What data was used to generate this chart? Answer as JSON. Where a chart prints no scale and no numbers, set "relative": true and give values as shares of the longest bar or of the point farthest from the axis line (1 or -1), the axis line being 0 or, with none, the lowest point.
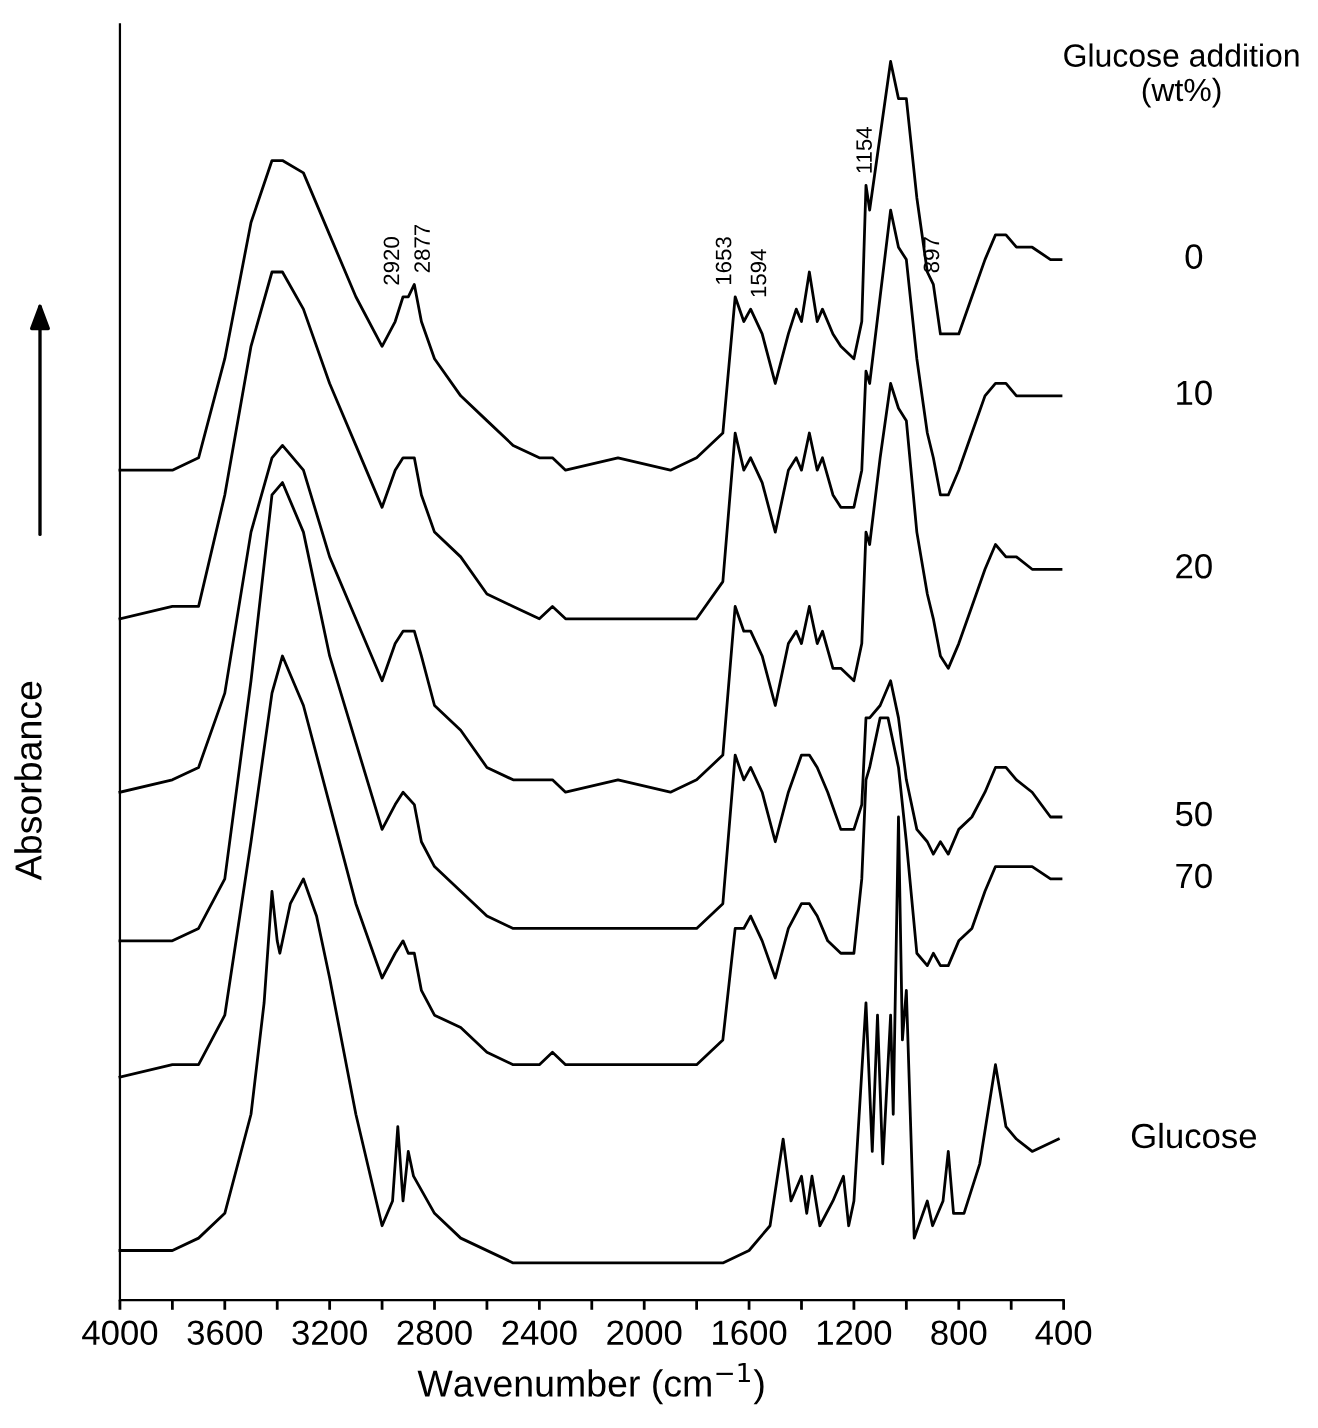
{
  "chart_data": {
    "type": "line",
    "relative": true,
    "xlabel": "Wavenumber (cm$^{−1}$)",
    "ylabel": "Absorbance",
    "legend_title": "Glucose addition\n(wt%)",
    "xlim": [
      4000,
      400
    ],
    "xticks": [
      4000,
      {
        "value": 3800,
        "label": null
      },
      3600,
      {
        "value": 3400,
        "label": null
      },
      3200,
      {
        "value": 3000,
        "label": null
      },
      2800,
      {
        "value": 2600,
        "label": null
      },
      2400,
      {
        "value": 2200,
        "label": null
      },
      2000,
      {
        "value": 1800,
        "label": null
      },
      1600,
      {
        "value": 1400,
        "label": null
      },
      1200,
      {
        "value": 1000,
        "label": null
      },
      800,
      {
        "value": 600,
        "label": null
      },
      400
    ],
    "grid": false,
    "marker": "none",
    "line_style": "solid",
    "annotations": [
      {
        "text": "2920",
        "x": 2920,
        "y": 0.81
      },
      {
        "text": "2877",
        "x": 2877,
        "y": 0.82
      },
      {
        "text": "1653",
        "x": 1653,
        "y": 0.81
      },
      {
        "text": "1594",
        "x": 1594,
        "y": 0.8
      },
      {
        "text": "1154",
        "x": 1154,
        "y": 0.9
      },
      {
        "text": "897",
        "x": 897,
        "y": 0.82
      }
    ],
    "series": [
      {
        "name": "0",
        "color": "#000000",
        "x": [
          4000,
          3800,
          3700,
          3600,
          3500,
          3420,
          3380,
          3300,
          3200,
          3100,
          3000,
          2950,
          2920,
          2900,
          2877,
          2850,
          2800,
          2700,
          2600,
          2500,
          2400,
          2350,
          2300,
          2100,
          1900,
          1800,
          1700,
          1653,
          1620,
          1594,
          1550,
          1500,
          1450,
          1420,
          1400,
          1370,
          1340,
          1320,
          1280,
          1250,
          1200,
          1170,
          1154,
          1140,
          1100,
          1060,
          1030,
          1000,
          960,
          920,
          897,
          870,
          840,
          800,
          750,
          700,
          660,
          620,
          580,
          520,
          450,
          410
        ],
        "values": [
          0.67,
          0.67,
          0.68,
          0.76,
          0.87,
          0.92,
          0.92,
          0.91,
          0.86,
          0.81,
          0.77,
          0.79,
          0.81,
          0.81,
          0.82,
          0.79,
          0.76,
          0.73,
          0.71,
          0.69,
          0.68,
          0.68,
          0.67,
          0.68,
          0.67,
          0.68,
          0.7,
          0.81,
          0.79,
          0.8,
          0.78,
          0.74,
          0.78,
          0.8,
          0.79,
          0.83,
          0.79,
          0.8,
          0.78,
          0.77,
          0.76,
          0.79,
          0.9,
          0.88,
          0.94,
          1.0,
          0.97,
          0.97,
          0.89,
          0.83,
          0.82,
          0.78,
          0.78,
          0.78,
          0.81,
          0.84,
          0.86,
          0.86,
          0.85,
          0.85,
          0.84,
          0.84
        ]
      },
      {
        "name": "10",
        "color": "#000000",
        "x": [
          4000,
          3800,
          3700,
          3600,
          3500,
          3420,
          3380,
          3300,
          3200,
          3100,
          3000,
          2950,
          2920,
          2877,
          2850,
          2800,
          2700,
          2600,
          2500,
          2400,
          2350,
          2300,
          2100,
          1900,
          1800,
          1700,
          1653,
          1620,
          1594,
          1550,
          1500,
          1450,
          1420,
          1400,
          1370,
          1340,
          1320,
          1280,
          1250,
          1200,
          1170,
          1154,
          1140,
          1100,
          1060,
          1030,
          1000,
          960,
          920,
          897,
          870,
          840,
          800,
          750,
          700,
          660,
          620,
          580,
          520,
          450,
          410
        ],
        "values": [
          0.55,
          0.56,
          0.56,
          0.65,
          0.77,
          0.83,
          0.83,
          0.8,
          0.74,
          0.69,
          0.64,
          0.67,
          0.68,
          0.68,
          0.65,
          0.62,
          0.6,
          0.57,
          0.56,
          0.55,
          0.56,
          0.55,
          0.55,
          0.55,
          0.55,
          0.58,
          0.7,
          0.67,
          0.68,
          0.66,
          0.62,
          0.67,
          0.68,
          0.67,
          0.7,
          0.67,
          0.68,
          0.65,
          0.64,
          0.64,
          0.67,
          0.75,
          0.74,
          0.81,
          0.88,
          0.85,
          0.84,
          0.76,
          0.7,
          0.68,
          0.65,
          0.65,
          0.67,
          0.7,
          0.73,
          0.74,
          0.74,
          0.73,
          0.73,
          0.73,
          0.73
        ]
      },
      {
        "name": "20",
        "color": "#000000",
        "x": [
          4000,
          3800,
          3700,
          3600,
          3500,
          3420,
          3380,
          3300,
          3200,
          3100,
          3000,
          2950,
          2920,
          2877,
          2850,
          2800,
          2700,
          2600,
          2500,
          2400,
          2350,
          2300,
          2100,
          1900,
          1800,
          1700,
          1653,
          1620,
          1594,
          1550,
          1500,
          1450,
          1420,
          1400,
          1370,
          1340,
          1320,
          1280,
          1250,
          1200,
          1170,
          1154,
          1140,
          1100,
          1060,
          1030,
          1000,
          960,
          920,
          897,
          870,
          840,
          800,
          750,
          700,
          660,
          620,
          580,
          520,
          450,
          410
        ],
        "values": [
          0.41,
          0.42,
          0.43,
          0.49,
          0.62,
          0.68,
          0.69,
          0.67,
          0.6,
          0.55,
          0.5,
          0.53,
          0.54,
          0.54,
          0.52,
          0.48,
          0.46,
          0.43,
          0.42,
          0.42,
          0.42,
          0.41,
          0.42,
          0.41,
          0.42,
          0.44,
          0.56,
          0.54,
          0.54,
          0.52,
          0.48,
          0.53,
          0.54,
          0.53,
          0.56,
          0.53,
          0.54,
          0.51,
          0.51,
          0.5,
          0.53,
          0.62,
          0.61,
          0.68,
          0.74,
          0.72,
          0.71,
          0.62,
          0.57,
          0.55,
          0.52,
          0.51,
          0.53,
          0.56,
          0.59,
          0.61,
          0.6,
          0.6,
          0.59,
          0.59,
          0.59
        ]
      },
      {
        "name": "50",
        "color": "#000000",
        "x": [
          4000,
          3800,
          3700,
          3600,
          3500,
          3420,
          3380,
          3300,
          3200,
          3100,
          3000,
          2950,
          2920,
          2877,
          2850,
          2800,
          2700,
          2600,
          2500,
          2400,
          2300,
          2100,
          1900,
          1800,
          1700,
          1653,
          1620,
          1594,
          1550,
          1500,
          1450,
          1400,
          1370,
          1340,
          1300,
          1250,
          1200,
          1170,
          1154,
          1140,
          1100,
          1060,
          1030,
          1000,
          960,
          920,
          897,
          870,
          840,
          800,
          750,
          700,
          660,
          620,
          580,
          520,
          450,
          410
        ],
        "values": [
          0.29,
          0.29,
          0.3,
          0.34,
          0.5,
          0.65,
          0.66,
          0.62,
          0.52,
          0.45,
          0.38,
          0.4,
          0.41,
          0.4,
          0.37,
          0.35,
          0.33,
          0.31,
          0.3,
          0.3,
          0.3,
          0.3,
          0.3,
          0.3,
          0.32,
          0.44,
          0.42,
          0.43,
          0.41,
          0.37,
          0.41,
          0.44,
          0.44,
          0.43,
          0.41,
          0.38,
          0.38,
          0.4,
          0.47,
          0.47,
          0.48,
          0.5,
          0.47,
          0.42,
          0.38,
          0.37,
          0.36,
          0.37,
          0.36,
          0.38,
          0.39,
          0.41,
          0.43,
          0.43,
          0.42,
          0.41,
          0.39,
          0.39
        ]
      },
      {
        "name": "70",
        "color": "#000000",
        "x": [
          4000,
          3800,
          3700,
          3600,
          3500,
          3420,
          3380,
          3300,
          3200,
          3100,
          3000,
          2950,
          2920,
          2900,
          2877,
          2850,
          2800,
          2700,
          2600,
          2500,
          2400,
          2350,
          2300,
          2100,
          1900,
          1800,
          1700,
          1653,
          1620,
          1594,
          1550,
          1500,
          1450,
          1400,
          1370,
          1340,
          1300,
          1250,
          1200,
          1170,
          1154,
          1140,
          1100,
          1070,
          1030,
          1000,
          960,
          920,
          897,
          870,
          840,
          800,
          750,
          700,
          660,
          620,
          580,
          520,
          450,
          410
        ],
        "values": [
          0.18,
          0.19,
          0.19,
          0.23,
          0.37,
          0.49,
          0.52,
          0.48,
          0.4,
          0.32,
          0.26,
          0.28,
          0.29,
          0.28,
          0.28,
          0.25,
          0.23,
          0.22,
          0.2,
          0.19,
          0.19,
          0.2,
          0.19,
          0.19,
          0.19,
          0.19,
          0.21,
          0.3,
          0.3,
          0.31,
          0.29,
          0.26,
          0.3,
          0.32,
          0.32,
          0.31,
          0.29,
          0.28,
          0.28,
          0.34,
          0.42,
          0.43,
          0.47,
          0.47,
          0.43,
          0.37,
          0.28,
          0.27,
          0.28,
          0.27,
          0.27,
          0.29,
          0.3,
          0.33,
          0.35,
          0.35,
          0.35,
          0.35,
          0.34,
          0.34
        ]
      },
      {
        "name": "Glucose",
        "color": "#000000",
        "x": [
          4000,
          3800,
          3700,
          3600,
          3500,
          3450,
          3420,
          3400,
          3390,
          3350,
          3300,
          3250,
          3200,
          3100,
          3000,
          2960,
          2940,
          2920,
          2900,
          2880,
          2800,
          2700,
          2500,
          2200,
          2000,
          1700,
          1600,
          1520,
          1470,
          1440,
          1400,
          1380,
          1360,
          1330,
          1280,
          1240,
          1220,
          1200,
          1154,
          1130,
          1110,
          1090,
          1060,
          1050,
          1030,
          1015,
          1000,
          970,
          920,
          900,
          860,
          840,
          820,
          780,
          720,
          660,
          620,
          580,
          520,
          420
        ],
        "values": [
          0.04,
          0.04,
          0.05,
          0.07,
          0.15,
          0.24,
          0.33,
          0.29,
          0.28,
          0.32,
          0.34,
          0.31,
          0.26,
          0.15,
          0.06,
          0.08,
          0.14,
          0.08,
          0.12,
          0.1,
          0.07,
          0.05,
          0.03,
          0.03,
          0.03,
          0.03,
          0.04,
          0.06,
          0.13,
          0.08,
          0.1,
          0.07,
          0.1,
          0.06,
          0.08,
          0.1,
          0.06,
          0.08,
          0.24,
          0.12,
          0.23,
          0.11,
          0.23,
          0.15,
          0.39,
          0.21,
          0.25,
          0.05,
          0.08,
          0.06,
          0.08,
          0.12,
          0.07,
          0.07,
          0.11,
          0.19,
          0.14,
          0.13,
          0.12,
          0.13
        ]
      }
    ]
  }
}
